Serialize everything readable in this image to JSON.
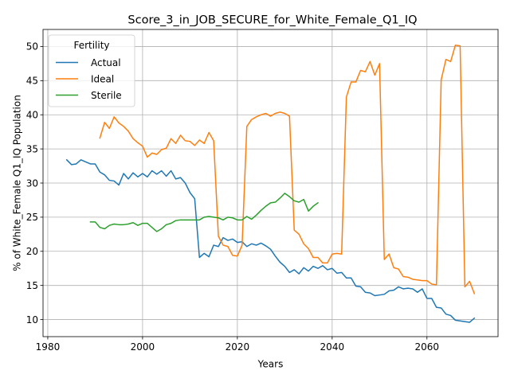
{
  "chart_data": {
    "type": "line",
    "title": "Score_3_in_JOB_SECURE_for_White_Female_Q1_IQ",
    "xlabel": "Years",
    "ylabel": "% of White_Female Q1_IQ Population",
    "xlim": [
      1979,
      2075
    ],
    "ylim": [
      7.5,
      52.5
    ],
    "xticks": [
      1980,
      2000,
      2020,
      2040,
      2060
    ],
    "yticks": [
      10,
      15,
      20,
      25,
      30,
      35,
      40,
      45,
      50
    ],
    "grid": true,
    "legend": {
      "title": "Fertility",
      "placement": "top-left"
    },
    "series": [
      {
        "name": "Actual",
        "color": "#1f77b4",
        "x": [
          1984,
          1985,
          1986,
          1987,
          1988,
          1989,
          1990,
          1991,
          1992,
          1993,
          1994,
          1995,
          1996,
          1997,
          1998,
          1999,
          2000,
          2001,
          2002,
          2003,
          2004,
          2005,
          2006,
          2007,
          2008,
          2009,
          2010,
          2011,
          2012,
          2013,
          2014,
          2015,
          2016,
          2017,
          2018,
          2019,
          2020,
          2021,
          2022,
          2023,
          2024,
          2025,
          2026,
          2027,
          2028,
          2029,
          2030,
          2031,
          2032,
          2033,
          2034,
          2035,
          2036,
          2037,
          2038,
          2039,
          2040,
          2041,
          2042,
          2043,
          2044,
          2045,
          2046,
          2047,
          2048,
          2049,
          2050,
          2051,
          2052,
          2053,
          2054,
          2055,
          2056,
          2057,
          2058,
          2059,
          2060,
          2061,
          2062,
          2063,
          2064,
          2065,
          2066,
          2067,
          2068,
          2069,
          2070
        ],
        "y": [
          33.4,
          32.7,
          32.8,
          33.4,
          33.1,
          32.8,
          32.8,
          31.6,
          31.2,
          30.4,
          30.3,
          29.7,
          31.4,
          30.6,
          31.5,
          30.9,
          31.4,
          30.9,
          31.8,
          31.3,
          31.8,
          31.0,
          31.8,
          30.6,
          30.8,
          30.0,
          28.6,
          27.7,
          19.1,
          19.7,
          19.2,
          20.9,
          20.7,
          22.0,
          21.6,
          21.8,
          21.3,
          21.4,
          20.7,
          21.1,
          20.9,
          21.2,
          20.8,
          20.3,
          19.3,
          18.4,
          17.8,
          16.9,
          17.3,
          16.7,
          17.6,
          17.1,
          17.8,
          17.5,
          17.9,
          17.3,
          17.5,
          16.8,
          16.9,
          16.1,
          16.1,
          14.9,
          14.8,
          14.0,
          13.9,
          13.5,
          13.6,
          13.7,
          14.2,
          14.3,
          14.8,
          14.5,
          14.6,
          14.5,
          14.0,
          14.5,
          13.1,
          13.1,
          11.8,
          11.7,
          10.8,
          10.6,
          9.9,
          9.8,
          9.7,
          9.6,
          10.2
        ]
      },
      {
        "name": "Ideal",
        "color": "#ff7f0e",
        "x": [
          1991,
          1992,
          1993,
          1994,
          1995,
          1996,
          1997,
          1998,
          1999,
          2000,
          2001,
          2002,
          2003,
          2004,
          2005,
          2006,
          2007,
          2008,
          2009,
          2010,
          2011,
          2012,
          2013,
          2014,
          2015,
          2016,
          2017,
          2018,
          2019,
          2020,
          2021,
          2022,
          2023,
          2024,
          2025,
          2026,
          2027,
          2028,
          2029,
          2030,
          2031,
          2032,
          2033,
          2034,
          2035,
          2036,
          2037,
          2038,
          2039,
          2040,
          2041,
          2042,
          2043,
          2044,
          2045,
          2046,
          2047,
          2048,
          2049,
          2050,
          2051,
          2052,
          2053,
          2054,
          2055,
          2056,
          2057,
          2058,
          2059,
          2060,
          2061,
          2062,
          2063,
          2064,
          2065,
          2066,
          2067,
          2068,
          2069,
          2070
        ],
        "y": [
          36.6,
          38.9,
          38.0,
          39.7,
          38.8,
          38.3,
          37.6,
          36.5,
          35.9,
          35.4,
          33.8,
          34.4,
          34.2,
          34.9,
          35.1,
          36.5,
          35.8,
          37.0,
          36.2,
          36.1,
          35.5,
          36.3,
          35.8,
          37.4,
          36.2,
          22.2,
          20.9,
          20.7,
          19.4,
          19.3,
          20.9,
          38.3,
          39.3,
          39.7,
          40.0,
          40.2,
          39.8,
          40.2,
          40.4,
          40.2,
          39.8,
          23.1,
          22.5,
          21.1,
          20.4,
          19.1,
          19.1,
          18.3,
          18.3,
          19.6,
          19.7,
          19.6,
          42.6,
          44.8,
          44.8,
          46.5,
          46.3,
          47.8,
          45.8,
          47.5,
          18.8,
          19.6,
          17.6,
          17.4,
          16.3,
          16.2,
          15.9,
          15.8,
          15.7,
          15.7,
          15.2,
          15.1,
          45.1,
          48.1,
          47.8,
          50.2,
          50.1,
          14.8,
          15.6,
          13.8
        ]
      },
      {
        "name": "Sterile",
        "color": "#2ca02c",
        "x": [
          1989,
          1990,
          1991,
          1992,
          1993,
          1994,
          1995,
          1996,
          1997,
          1998,
          1999,
          2000,
          2001,
          2002,
          2003,
          2004,
          2005,
          2006,
          2007,
          2008,
          2009,
          2010,
          2011,
          2012,
          2013,
          2014,
          2015,
          2016,
          2017,
          2018,
          2019,
          2020,
          2021,
          2022,
          2023,
          2024,
          2025,
          2026,
          2027,
          2028,
          2029,
          2030,
          2031,
          2032,
          2033,
          2034,
          2035,
          2036,
          2037
        ],
        "y": [
          24.3,
          24.3,
          23.5,
          23.3,
          23.8,
          24.0,
          23.9,
          23.9,
          24.0,
          24.2,
          23.8,
          24.1,
          24.1,
          23.5,
          22.9,
          23.3,
          23.9,
          24.1,
          24.5,
          24.6,
          24.6,
          24.6,
          24.6,
          24.6,
          25.0,
          25.1,
          25.0,
          24.9,
          24.6,
          25.0,
          24.9,
          24.6,
          24.6,
          25.1,
          24.7,
          25.3,
          26.0,
          26.6,
          27.1,
          27.2,
          27.8,
          28.5,
          28.0,
          27.4,
          27.2,
          27.6,
          25.9,
          26.6,
          27.1
        ]
      }
    ]
  }
}
